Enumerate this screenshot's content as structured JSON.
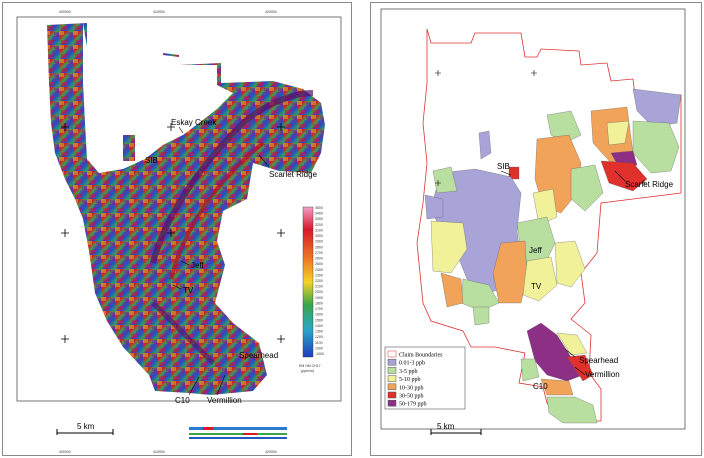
{
  "left_map": {
    "labels": {
      "eskay_creek": "Eskay Creek",
      "sib": "SIB",
      "scarlet_ridge": "Scarlet Ridge",
      "jeff": "Jeff",
      "tv": "TV",
      "spearhead": "Spearhead",
      "c10": "C10",
      "vermillion": "Vermillion"
    },
    "scale_label": "5 km",
    "colorbar_title": "EM HM CH17",
    "colorbar_subtitle": "(ppm/m)",
    "colorbar_values": [
      "-1000",
      "1000",
      "1100",
      "1200",
      "1300",
      "1400",
      "1500",
      "1600",
      "1700",
      "1800",
      "1900",
      "2000",
      "2100",
      "2200",
      "2300",
      "2400",
      "2500",
      "2600",
      "2700",
      "2800",
      "2900",
      "3000",
      "3100",
      "3200",
      "3300",
      "3400",
      "3500"
    ],
    "x_ticks": [
      "400000",
      "410000",
      "420000"
    ],
    "colors": {
      "hot": "#d7192a",
      "mid": "#3aa54a",
      "cold": "#1e5bbd",
      "high": "#7a1fa0",
      "warm": "#e8a225"
    }
  },
  "right_map": {
    "labels": {
      "sib": "SIB",
      "scarlet_ridge": "Scarlet Ridge",
      "jeff": "Jeff",
      "tv": "TV",
      "spearhead": "Spearhead",
      "c10": "C10",
      "vermillion": "Vermillion"
    },
    "scale_label": "5 km",
    "legend": [
      {
        "label": "Claim Boundaries",
        "color": "#ffffff",
        "border": "#d33"
      },
      {
        "label": "0.01-3 ppb",
        "color": "#a8a4d8"
      },
      {
        "label": "3-5 ppb",
        "color": "#b8dea0"
      },
      {
        "label": "5-10 ppb",
        "color": "#f1f19a"
      },
      {
        "label": "10-30 ppb",
        "color": "#f1a35a"
      },
      {
        "label": "30-50 ppb",
        "color": "#e0302c"
      },
      {
        "label": "50-179 ppb",
        "color": "#8e2f86"
      }
    ]
  }
}
